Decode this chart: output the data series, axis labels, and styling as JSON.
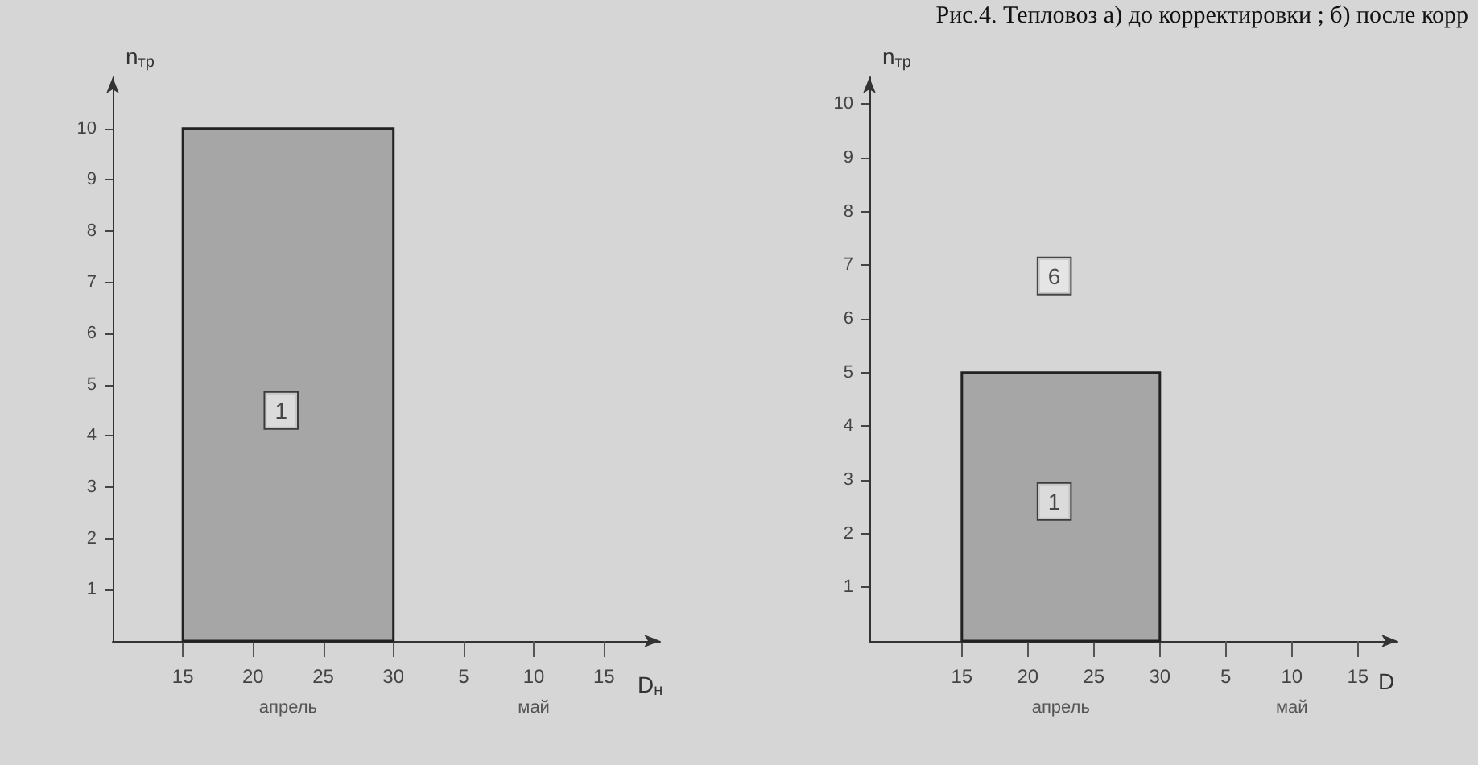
{
  "chart_data": [
    {
      "type": "histogram",
      "xlabel": "D$_{н}$",
      "ylabel": "n$_{тр}$",
      "bins": [
        "--04-15",
        "--04-30"
      ],
      "values": [
        10
      ],
      "color": "#a6a6a6",
      "xlim": [
        "--04-10",
        "--05-19"
      ],
      "xticks": [
        {
          "value": "--04-15",
          "label": "15"
        },
        {
          "value": "--04-20",
          "label": "20"
        },
        {
          "value": "--04-25",
          "label": "25"
        },
        {
          "value": "--04-30",
          "label": "30"
        },
        {
          "value": "--05-05",
          "label": "5"
        },
        {
          "value": "--05-10",
          "label": "10"
        },
        {
          "value": "--05-15",
          "label": "15"
        }
      ],
      "ylim": [
        0,
        11
      ],
      "yticks": [
        1,
        2,
        3,
        4,
        5,
        6,
        7,
        8,
        9,
        10
      ],
      "grid": false,
      "annotations": [
        {
          "text": "1",
          "x": "--04-22",
          "y": 4.5
        },
        "апрель",
        "май"
      ]
    },
    {
      "type": "histogram",
      "title": "Рис.4. Тепловоз а) до корректировки ; б) после корр",
      "xlabel": "D",
      "ylabel": "n$_{тр}$",
      "bins": [
        "--04-15",
        "--04-30"
      ],
      "values": [
        5
      ],
      "color": "#a6a6a6",
      "xlim": [
        "--04-08",
        "--05-18"
      ],
      "xticks": [
        {
          "value": "--04-15",
          "label": "15"
        },
        {
          "value": "--04-20",
          "label": "20"
        },
        {
          "value": "--04-25",
          "label": "25"
        },
        {
          "value": "--04-30",
          "label": "30"
        },
        {
          "value": "--05-05",
          "label": "5"
        },
        {
          "value": "--05-10",
          "label": "10"
        },
        {
          "value": "--05-15",
          "label": "15"
        }
      ],
      "ylim": [
        0,
        10.5
      ],
      "yticks": [
        1,
        2,
        3,
        4,
        5,
        6,
        7,
        8,
        9,
        10
      ],
      "grid": false,
      "annotations": [
        {
          "text": "1",
          "x": "--04-22",
          "y": 2.6
        },
        {
          "text": "6",
          "x": "--04-22",
          "y": 6.8
        },
        "апрель",
        "май"
      ]
    }
  ]
}
